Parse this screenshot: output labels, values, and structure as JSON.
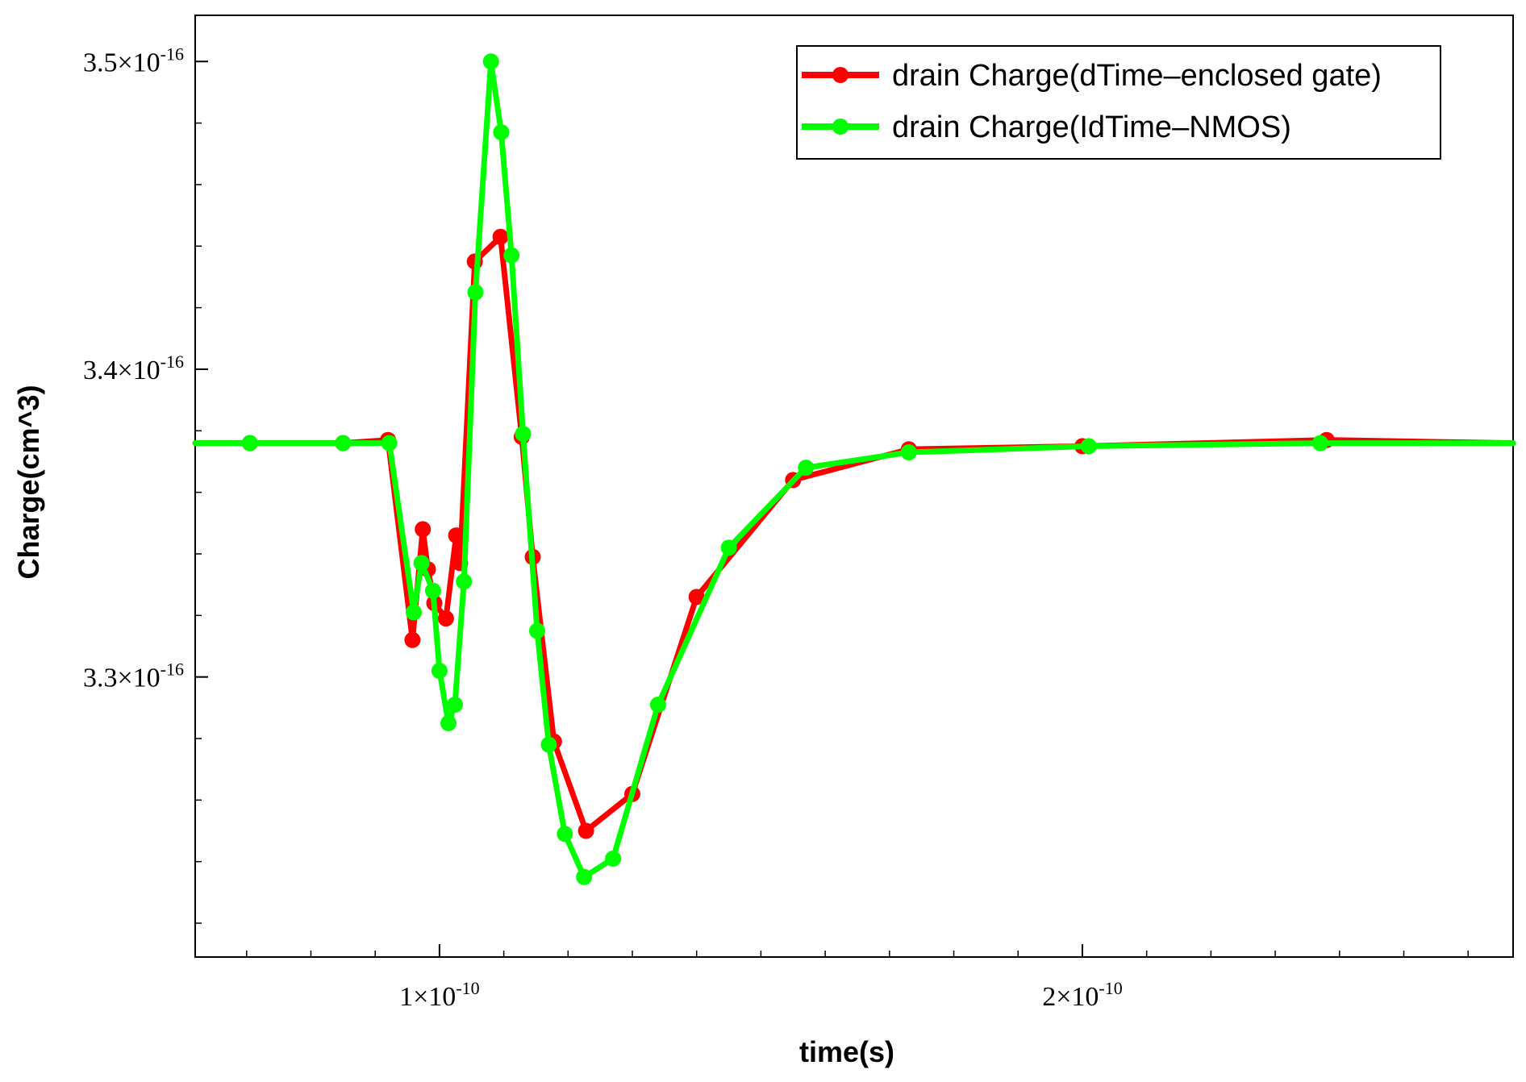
{
  "chart_data": {
    "type": "line",
    "xlabel": "time(s)",
    "ylabel": "Charge(cm^3)",
    "xlim": [
      6.2e-11,
      2.67e-10
    ],
    "ylim": [
      3.209e-16,
      3.515e-16
    ],
    "grid": false,
    "legend_position": "top-right",
    "x_ticks": [
      {
        "value": 1e-10,
        "mantissa": "1×10",
        "exponent": "-10"
      },
      {
        "value": 2e-10,
        "mantissa": "2×10",
        "exponent": "-10"
      }
    ],
    "y_ticks": [
      {
        "value": 3.5e-16,
        "mantissa": "3.5×10",
        "exponent": "-16"
      },
      {
        "value": 3.4e-16,
        "mantissa": "3.4×10",
        "exponent": "-16"
      },
      {
        "value": 3.3e-16,
        "mantissa": "3.3×10",
        "exponent": "-16"
      }
    ],
    "series": [
      {
        "name": "drain Charge(dTime–enclosed gate)",
        "color": "#ff0000",
        "x": [
          6.2e-11,
          7.05e-11,
          8.5e-11,
          9.2e-11,
          9.58e-11,
          9.74e-11,
          9.82e-11,
          9.92e-11,
          1.01e-10,
          1.026e-10,
          1.032e-10,
          1.055e-10,
          1.095e-10,
          1.128e-10,
          1.145e-10,
          1.178e-10,
          1.228e-10,
          1.3e-10,
          1.4e-10,
          1.55e-10,
          1.73e-10,
          2e-10,
          2.38e-10,
          2.67e-10
        ],
        "y": [
          3.376e-16,
          3.376e-16,
          3.376e-16,
          3.377e-16,
          3.312e-16,
          3.348e-16,
          3.335e-16,
          3.324e-16,
          3.319e-16,
          3.346e-16,
          3.337e-16,
          3.435e-16,
          3.443e-16,
          3.378e-16,
          3.339e-16,
          3.279e-16,
          3.25e-16,
          3.262e-16,
          3.326e-16,
          3.364e-16,
          3.374e-16,
          3.375e-16,
          3.377e-16,
          3.376e-16
        ]
      },
      {
        "name": "drain Charge(IdTime–NMOS)",
        "color": "#00ff00",
        "x": [
          6.2e-11,
          7.05e-11,
          8.5e-11,
          9.22e-11,
          9.6e-11,
          9.72e-11,
          9.9e-11,
          1e-10,
          1.014e-10,
          1.024e-10,
          1.038e-10,
          1.056e-10,
          1.08e-10,
          1.096e-10,
          1.112e-10,
          1.13e-10,
          1.152e-10,
          1.17e-10,
          1.195e-10,
          1.225e-10,
          1.27e-10,
          1.34e-10,
          1.45e-10,
          1.57e-10,
          1.73e-10,
          2.01e-10,
          2.37e-10,
          2.67e-10
        ],
        "y": [
          3.376e-16,
          3.376e-16,
          3.376e-16,
          3.376e-16,
          3.321e-16,
          3.337e-16,
          3.328e-16,
          3.302e-16,
          3.285e-16,
          3.291e-16,
          3.331e-16,
          3.425e-16,
          3.5e-16,
          3.477e-16,
          3.437e-16,
          3.379e-16,
          3.315e-16,
          3.278e-16,
          3.249e-16,
          3.235e-16,
          3.241e-16,
          3.291e-16,
          3.342e-16,
          3.368e-16,
          3.373e-16,
          3.375e-16,
          3.376e-16,
          3.376e-16
        ]
      }
    ]
  }
}
